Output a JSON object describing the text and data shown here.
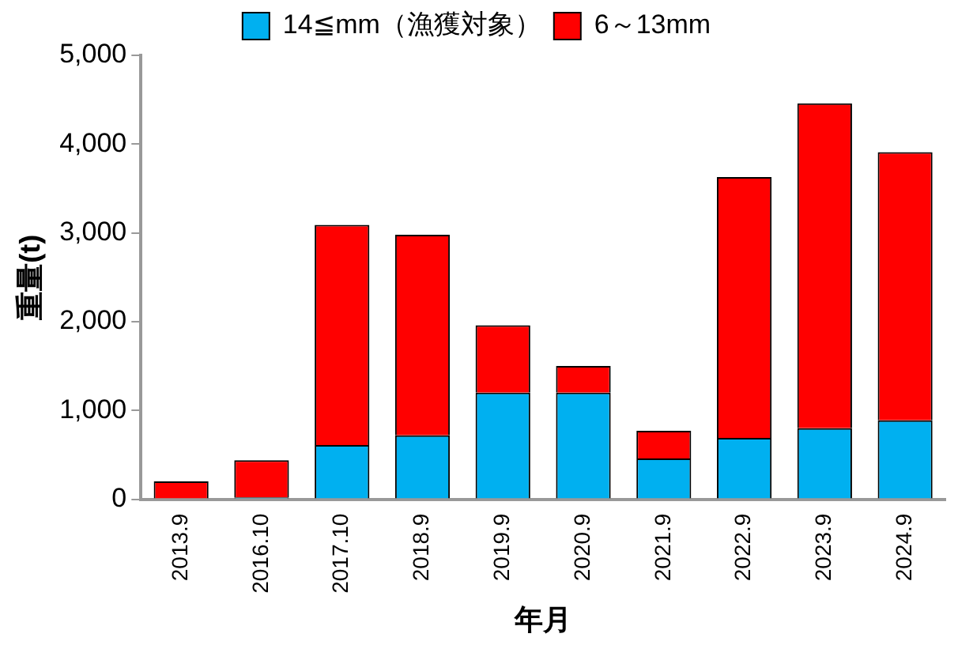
{
  "chart_data": {
    "type": "bar",
    "stacked": true,
    "xlabel": "年月",
    "ylabel": "重量(t)",
    "categories": [
      "2013.9",
      "2016.10",
      "2017.10",
      "2018.9",
      "2019.9",
      "2020.9",
      "2021.9",
      "2022.9",
      "2023.9",
      "2024.9"
    ],
    "series": [
      {
        "name": "14≦mm（漁獲対象）",
        "color": "#00b0f0",
        "values": [
          0,
          20,
          610,
          720,
          1200,
          1200,
          460,
          690,
          800,
          890
        ]
      },
      {
        "name": "6～13mm",
        "color": "#ff0000",
        "values": [
          200,
          420,
          2480,
          2260,
          760,
          300,
          310,
          2940,
          3660,
          3020
        ]
      }
    ],
    "ylim": [
      0,
      5000
    ],
    "yticks": [
      {
        "value": 0,
        "label": "0"
      },
      {
        "value": 1000,
        "label": "1,000"
      },
      {
        "value": 2000,
        "label": "2,000"
      },
      {
        "value": 3000,
        "label": "3,000"
      },
      {
        "value": 4000,
        "label": "4,000"
      },
      {
        "value": 5000,
        "label": "5,000"
      }
    ],
    "grid": false,
    "legend": "top"
  }
}
